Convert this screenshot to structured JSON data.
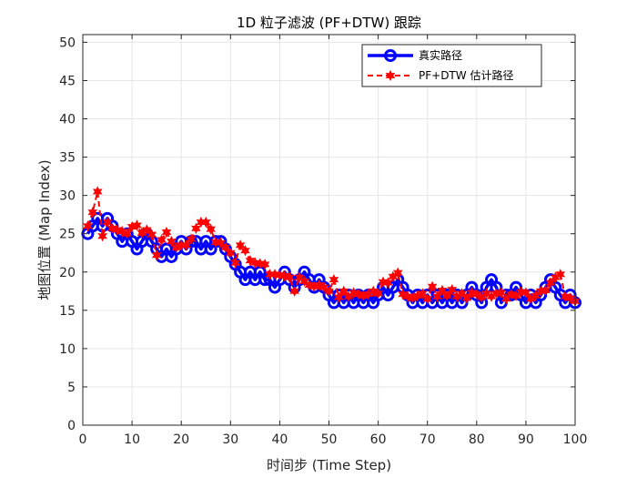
{
  "chart_data": {
    "type": "line",
    "title": "1D 粒子滤波 (PF+DTW) 跟踪",
    "xlabel": "时间步 (Time Step)",
    "ylabel": "地图位置 (Map Index)",
    "xlim": [
      0,
      100
    ],
    "ylim": [
      0,
      51
    ],
    "xticks": [
      "0",
      "10",
      "20",
      "30",
      "40",
      "50",
      "60",
      "70",
      "80",
      "90",
      "100"
    ],
    "yticks": [
      "0",
      "5",
      "10",
      "15",
      "20",
      "25",
      "30",
      "35",
      "40",
      "45",
      "50"
    ],
    "grid": true,
    "legend_position": "top-right",
    "x": [
      1,
      2,
      3,
      4,
      5,
      6,
      7,
      8,
      9,
      10,
      11,
      12,
      13,
      14,
      15,
      16,
      17,
      18,
      19,
      20,
      21,
      22,
      23,
      24,
      25,
      26,
      27,
      28,
      29,
      30,
      31,
      32,
      33,
      34,
      35,
      36,
      37,
      38,
      39,
      40,
      41,
      42,
      43,
      44,
      45,
      46,
      47,
      48,
      49,
      50,
      51,
      52,
      53,
      54,
      55,
      56,
      57,
      58,
      59,
      60,
      61,
      62,
      63,
      64,
      65,
      66,
      67,
      68,
      69,
      70,
      71,
      72,
      73,
      74,
      75,
      76,
      77,
      78,
      79,
      80,
      81,
      82,
      83,
      84,
      85,
      86,
      87,
      88,
      89,
      90,
      91,
      92,
      93,
      94,
      95,
      96,
      97,
      98,
      99,
      100
    ],
    "series": [
      {
        "name": "真实路径",
        "color": "#0000FF",
        "line_style": "solid",
        "marker": "circle",
        "values": [
          25,
          26,
          27,
          26,
          27,
          26,
          25,
          24,
          25,
          24,
          23,
          24,
          25,
          24,
          23,
          22,
          23,
          22,
          23,
          24,
          23,
          24,
          24,
          23,
          24,
          23,
          24,
          24,
          23,
          22,
          21,
          20,
          19,
          20,
          19,
          20,
          19,
          19,
          18,
          19,
          20,
          19,
          18,
          19,
          20,
          19,
          18,
          19,
          18,
          17,
          16,
          17,
          16,
          17,
          16,
          17,
          16,
          17,
          16,
          17,
          18,
          17,
          18,
          19,
          18,
          17,
          16,
          17,
          16,
          17,
          16,
          17,
          16,
          17,
          16,
          17,
          16,
          17,
          18,
          17,
          16,
          18,
          19,
          18,
          16,
          17,
          17,
          18,
          17,
          16,
          17,
          16,
          17,
          18,
          19,
          18,
          17,
          16,
          17,
          16
        ]
      },
      {
        "name": "PF+DTW 估计路径",
        "color": "#FF0000",
        "line_style": "dashed",
        "marker": "star",
        "values": [
          26,
          27.8,
          30.5,
          24.7,
          26.5,
          25.7,
          25.5,
          25.3,
          25,
          25.9,
          26.1,
          25.1,
          25.5,
          24.9,
          22.2,
          24.2,
          25.2,
          24,
          23.2,
          23.5,
          23.5,
          24.3,
          25.7,
          26.5,
          26.5,
          25.6,
          23.9,
          23.8,
          23.2,
          22.5,
          21.2,
          23.5,
          22.8,
          21.5,
          21.2,
          21.1,
          21,
          19.7,
          19.7,
          19.6,
          19.5,
          19.3,
          17.5,
          19.3,
          18.8,
          18.3,
          18.1,
          18.3,
          18,
          17.5,
          19,
          16.7,
          17.5,
          16.8,
          17.3,
          17.1,
          16.9,
          17.1,
          17.5,
          17.2,
          18.7,
          18.6,
          19.4,
          19.9,
          17.1,
          16.8,
          16.6,
          16.9,
          17.2,
          16.5,
          18.1,
          16.8,
          17.6,
          16.9,
          17.7,
          16.8,
          17.2,
          16.6,
          17.3,
          17.1,
          16.7,
          17.2,
          16.8,
          17.2,
          17.3,
          16.5,
          17.1,
          16.9,
          17.4,
          17.3,
          16.5,
          16.9,
          17.5,
          17.6,
          18.6,
          19.3,
          19.7,
          16.8,
          16.6,
          16.2
        ]
      }
    ]
  }
}
